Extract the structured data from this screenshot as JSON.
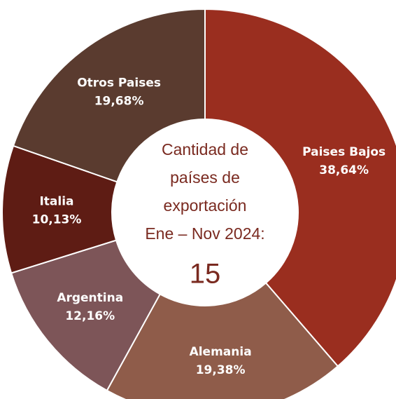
{
  "chart_data": {
    "type": "pie",
    "categories": [
      "Paises Bajos",
      "Alemania",
      "Argentina",
      "Italia",
      "Otros Paises"
    ],
    "values": [
      38.64,
      19.38,
      12.16,
      10.13,
      19.68
    ],
    "value_labels": [
      "38,64%",
      "19,38%",
      "12,16%",
      "10,13%",
      "19,68%"
    ],
    "colors": [
      "#9a2e1f",
      "#8f5c4a",
      "#7d5558",
      "#5e1c14",
      "#5a3b2f"
    ],
    "center_text": [
      "Cantidad de",
      "países de",
      "exportación",
      "Ene – Nov 2024:"
    ],
    "center_value": 15
  }
}
